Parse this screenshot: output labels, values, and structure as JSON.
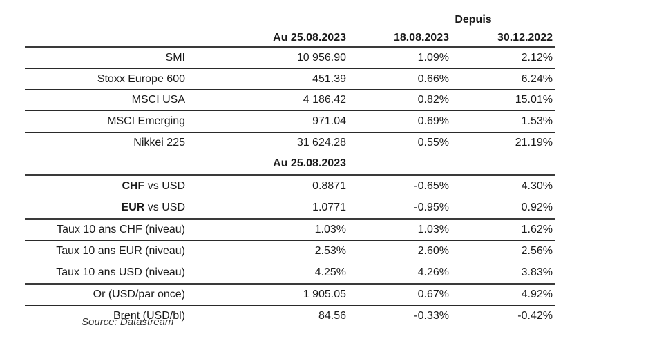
{
  "header": {
    "depuis": "Depuis",
    "col1": "Au 25.08.2023",
    "col2": "18.08.2023",
    "col3": "30.12.2022"
  },
  "indices": [
    {
      "name": "SMI",
      "value": "10 956.90",
      "since_week": "1.09%",
      "since_ytd": "2.12%"
    },
    {
      "name": "Stoxx Europe 600",
      "value": "451.39",
      "since_week": "0.66%",
      "since_ytd": "6.24%"
    },
    {
      "name": "MSCI USA",
      "value": "4 186.42",
      "since_week": "0.82%",
      "since_ytd": "15.01%"
    },
    {
      "name": "MSCI Emerging",
      "value": "971.04",
      "since_week": "0.69%",
      "since_ytd": "1.53%"
    },
    {
      "name": "Nikkei 225",
      "value": "31 624.28",
      "since_week": "0.55%",
      "since_ytd": "21.19%"
    }
  ],
  "subheader": "Au 25.08.2023",
  "fx": [
    {
      "ccy": "CHF",
      "suffix": " vs USD",
      "value": "0.8871",
      "since_week": "-0.65%",
      "since_ytd": "4.30%"
    },
    {
      "ccy": "EUR",
      "suffix": " vs USD",
      "value": "1.0771",
      "since_week": "-0.95%",
      "since_ytd": "0.92%"
    }
  ],
  "rates": [
    {
      "name": "Taux 10 ans CHF (niveau)",
      "value": "1.03%",
      "since_week": "1.03%",
      "since_ytd": "1.62%"
    },
    {
      "name": "Taux 10 ans EUR (niveau)",
      "value": "2.53%",
      "since_week": "2.60%",
      "since_ytd": "2.56%"
    },
    {
      "name": "Taux 10 ans USD (niveau)",
      "value": "4.25%",
      "since_week": "4.26%",
      "since_ytd": "3.83%"
    }
  ],
  "commodities": [
    {
      "name": "Or (USD/par once)",
      "value": "1 905.05",
      "since_week": "0.67%",
      "since_ytd": "4.92%"
    },
    {
      "name": "Brent (USD/bl)",
      "value": "84.56",
      "since_week": "-0.33%",
      "since_ytd": "-0.42%"
    }
  ],
  "source": "Source: Datastream"
}
